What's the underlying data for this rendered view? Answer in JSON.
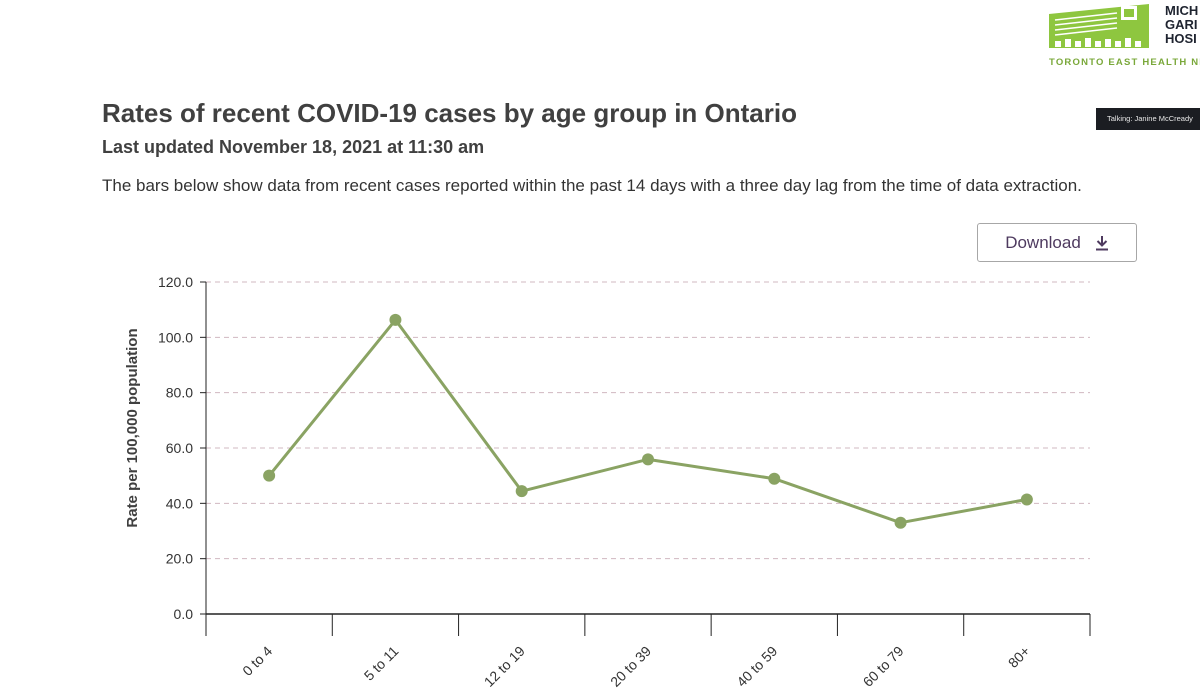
{
  "logo": {
    "name_lines": [
      "MICH",
      "GARI",
      "HOSI"
    ],
    "network": "TORONTO EAST HEALTH NET"
  },
  "talking_label": "Talking: Janine McCready",
  "page": {
    "title": "Rates of recent COVID-19 cases by age group in Ontario",
    "subtitle": "Last updated November 18, 2021 at 11:30 am",
    "description": "The bars below show data from recent cases reported within the past 14 days with a three day lag from the time of data extraction."
  },
  "download": {
    "label": "Download",
    "icon": "download-icon"
  },
  "colors": {
    "series": "#8aa363",
    "grid": "#d0b8c0",
    "axis": "#222222",
    "button_text": "#4e3a5f"
  },
  "chart_data": {
    "type": "line",
    "title": "Rates of recent COVID-19 cases by age group in Ontario",
    "ylabel": "Rate per 100,000 population",
    "xlabel": "",
    "categories": [
      "0 to 4",
      "5 to 11",
      "12 to 19",
      "20 to 39",
      "40 to 59",
      "60 to 79",
      "80+"
    ],
    "values": [
      50.0,
      106.3,
      44.4,
      55.9,
      48.9,
      33.0,
      41.4
    ],
    "ylim": [
      0,
      120
    ],
    "yticks": [
      "0.0",
      "20.0",
      "40.0",
      "60.0",
      "80.0",
      "100.0",
      "120.0"
    ],
    "grid": true,
    "legend": "none"
  }
}
